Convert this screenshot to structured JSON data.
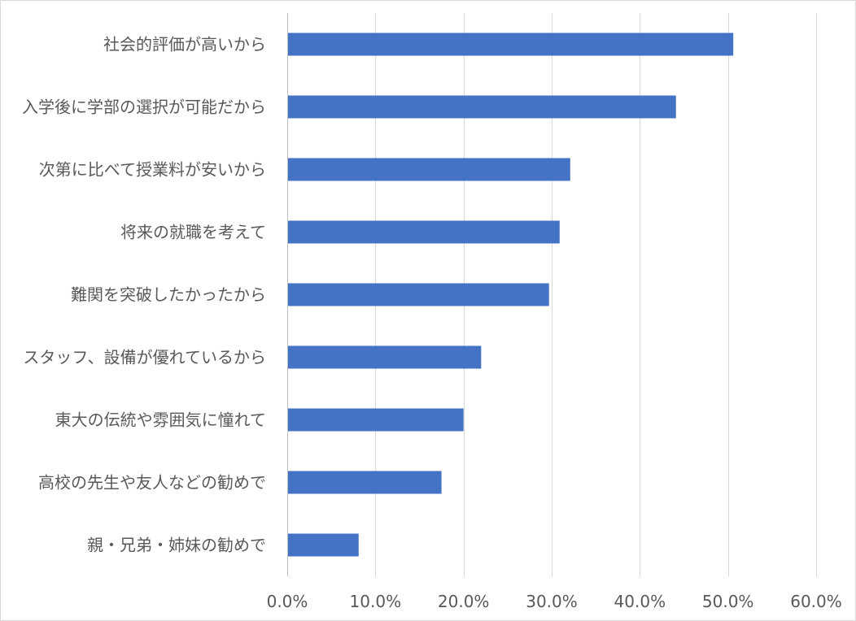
{
  "chart_data": {
    "type": "bar",
    "orientation": "horizontal",
    "categories": [
      "社会的評価が高いから",
      "入学後に学部の選択が可能だから",
      "次第に比べて授業料が安いから",
      "将来の就職を考えて",
      "難関を突破したかったから",
      "スタッフ、設備が優れているから",
      "東大の伝統や雰囲気に憧れて",
      "高校の先生や友人などの勧めで",
      "親・兄弟・姉妹の勧めで"
    ],
    "values": [
      50.6,
      44.1,
      32.1,
      30.9,
      29.7,
      22.0,
      20.0,
      17.5,
      8.1
    ],
    "xlim": [
      0,
      60
    ],
    "xticks": [
      0,
      10,
      20,
      30,
      40,
      50,
      60
    ],
    "xtick_labels": [
      "0.0%",
      "10.0%",
      "20.0%",
      "30.0%",
      "40.0%",
      "50.0%",
      "60.0%"
    ],
    "bar_color": "#4472c4",
    "grid": true,
    "title": "",
    "xlabel": "",
    "ylabel": ""
  }
}
